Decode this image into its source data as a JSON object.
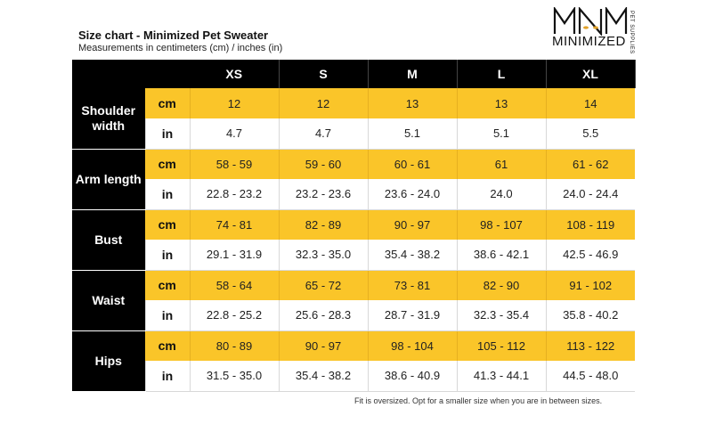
{
  "header": {
    "title": "Size chart - Minimized Pet Sweater",
    "subtitle": "Measurements in centimeters (cm) / inches (in)"
  },
  "logo": {
    "monogram": "MNM",
    "wordmark": "MINIMIZED",
    "tagline": "PET SUPPLIES"
  },
  "table": {
    "sizes": [
      "XS",
      "S",
      "M",
      "L",
      "XL"
    ],
    "rows": [
      {
        "measure": "Shoulder width",
        "cm_label": "cm",
        "cm": [
          "12",
          "12",
          "13",
          "13",
          "14"
        ],
        "in_label": "in",
        "in": [
          "4.7",
          "4.7",
          "5.1",
          "5.1",
          "5.5"
        ]
      },
      {
        "measure": "Arm length",
        "cm_label": "cm",
        "cm": [
          "58 - 59",
          "59 - 60",
          "60 - 61",
          "61",
          "61 - 62"
        ],
        "in_label": "in",
        "in": [
          "22.8 - 23.2",
          "23.2 - 23.6",
          "23.6 - 24.0",
          "24.0",
          "24.0 - 24.4"
        ]
      },
      {
        "measure": "Bust",
        "cm_label": "cm",
        "cm": [
          "74 - 81",
          "82 - 89",
          "90 - 97",
          "98 - 107",
          "108 - 119"
        ],
        "in_label": "in",
        "in": [
          "29.1 - 31.9",
          "32.3 - 35.0",
          "35.4 - 38.2",
          "38.6 - 42.1",
          "42.5 - 46.9"
        ]
      },
      {
        "measure": "Waist",
        "cm_label": "cm",
        "cm": [
          "58 - 64",
          "65 - 72",
          "73 - 81",
          "82 - 90",
          "91 - 102"
        ],
        "in_label": "in",
        "in": [
          "22.8 - 25.2",
          "25.6 - 28.3",
          "28.7 - 31.9",
          "32.3 - 35.4",
          "35.8 - 40.2"
        ]
      },
      {
        "measure": "Hips",
        "cm_label": "cm",
        "cm": [
          "80 - 89",
          "90 - 97",
          "98 - 104",
          "105 - 112",
          "113 - 122"
        ],
        "in_label": "in",
        "in": [
          "31.5 - 35.0",
          "35.4 - 38.2",
          "38.6 - 40.9",
          "41.3 - 44.1",
          "44.5 - 48.0"
        ]
      }
    ]
  },
  "footnote": "Fit is oversized. Opt for a smaller size when you are in between sizes.",
  "colors": {
    "accent": "#fac529",
    "header_bg": "#000000",
    "text": "#111111"
  }
}
